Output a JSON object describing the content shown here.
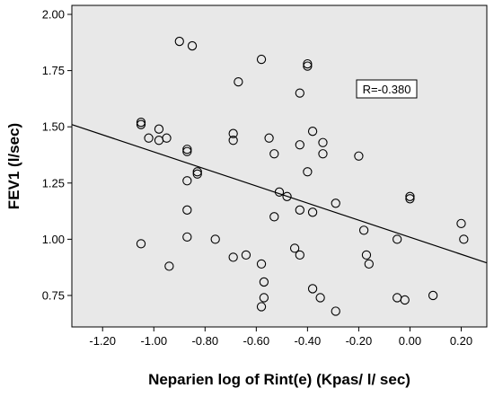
{
  "chart_data": {
    "type": "scatter",
    "title": "",
    "xlabel": "Neparien log of Rint(e) (Kpas/ l/ sec)",
    "ylabel": "FEV1 (l/sec)",
    "xlim": [
      -1.32,
      0.3
    ],
    "ylim": [
      0.61,
      2.04
    ],
    "xticks": [
      -1.2,
      -1.0,
      -0.8,
      -0.6,
      -0.4,
      -0.2,
      0.0,
      0.2
    ],
    "xtick_labels": [
      "-1.20",
      "-1.00",
      "-0.80",
      "-0.60",
      "-0.40",
      "-0.20",
      "0.00",
      "0.20"
    ],
    "yticks": [
      0.75,
      1.0,
      1.25,
      1.5,
      1.75,
      2.0
    ],
    "ytick_labels": [
      "0.75",
      "1.00",
      "1.25",
      "1.50",
      "1.75",
      "2.00"
    ],
    "grid": false,
    "background": "#e8e8e8",
    "marker": "open-circle",
    "fit_line": {
      "x": [
        -1.32,
        0.3
      ],
      "y": [
        1.51,
        0.895
      ]
    },
    "annotation": "R=-0.380",
    "points": [
      {
        "x": -1.05,
        "y": 1.52
      },
      {
        "x": -1.05,
        "y": 1.51
      },
      {
        "x": -1.02,
        "y": 1.45
      },
      {
        "x": -0.98,
        "y": 1.49
      },
      {
        "x": -0.98,
        "y": 1.44
      },
      {
        "x": -0.95,
        "y": 1.45
      },
      {
        "x": -0.9,
        "y": 1.88
      },
      {
        "x": -0.85,
        "y": 1.86
      },
      {
        "x": -0.87,
        "y": 1.4
      },
      {
        "x": -0.87,
        "y": 1.39
      },
      {
        "x": -0.83,
        "y": 1.3
      },
      {
        "x": -0.83,
        "y": 1.29
      },
      {
        "x": -0.87,
        "y": 1.26
      },
      {
        "x": -0.87,
        "y": 1.13
      },
      {
        "x": -0.87,
        "y": 1.01
      },
      {
        "x": -1.05,
        "y": 0.98
      },
      {
        "x": -0.94,
        "y": 0.88
      },
      {
        "x": -0.76,
        "y": 1.0
      },
      {
        "x": -0.69,
        "y": 1.47
      },
      {
        "x": -0.69,
        "y": 1.44
      },
      {
        "x": -0.67,
        "y": 1.7
      },
      {
        "x": -0.69,
        "y": 0.92
      },
      {
        "x": -0.64,
        "y": 0.93
      },
      {
        "x": -0.58,
        "y": 1.8
      },
      {
        "x": -0.55,
        "y": 1.45
      },
      {
        "x": -0.53,
        "y": 1.38
      },
      {
        "x": -0.51,
        "y": 1.21
      },
      {
        "x": -0.48,
        "y": 1.19
      },
      {
        "x": -0.53,
        "y": 1.1
      },
      {
        "x": -0.58,
        "y": 0.89
      },
      {
        "x": -0.57,
        "y": 0.81
      },
      {
        "x": -0.57,
        "y": 0.74
      },
      {
        "x": -0.58,
        "y": 0.7
      },
      {
        "x": -0.4,
        "y": 1.78
      },
      {
        "x": -0.4,
        "y": 1.77
      },
      {
        "x": -0.43,
        "y": 1.65
      },
      {
        "x": -0.38,
        "y": 1.48
      },
      {
        "x": -0.43,
        "y": 1.42
      },
      {
        "x": -0.34,
        "y": 1.43
      },
      {
        "x": -0.34,
        "y": 1.38
      },
      {
        "x": -0.4,
        "y": 1.3
      },
      {
        "x": -0.43,
        "y": 1.13
      },
      {
        "x": -0.38,
        "y": 1.12
      },
      {
        "x": -0.45,
        "y": 0.96
      },
      {
        "x": -0.43,
        "y": 0.93
      },
      {
        "x": -0.38,
        "y": 0.78
      },
      {
        "x": -0.35,
        "y": 0.74
      },
      {
        "x": -0.29,
        "y": 0.68
      },
      {
        "x": -0.29,
        "y": 1.16
      },
      {
        "x": -0.2,
        "y": 1.37
      },
      {
        "x": -0.18,
        "y": 1.04
      },
      {
        "x": -0.17,
        "y": 0.93
      },
      {
        "x": -0.16,
        "y": 0.89
      },
      {
        "x": -0.05,
        "y": 1.0
      },
      {
        "x": -0.05,
        "y": 0.74
      },
      {
        "x": -0.02,
        "y": 0.73
      },
      {
        "x": 0.0,
        "y": 1.19
      },
      {
        "x": 0.0,
        "y": 1.18
      },
      {
        "x": 0.09,
        "y": 0.75
      },
      {
        "x": 0.2,
        "y": 1.07
      },
      {
        "x": 0.21,
        "y": 1.0
      }
    ]
  }
}
